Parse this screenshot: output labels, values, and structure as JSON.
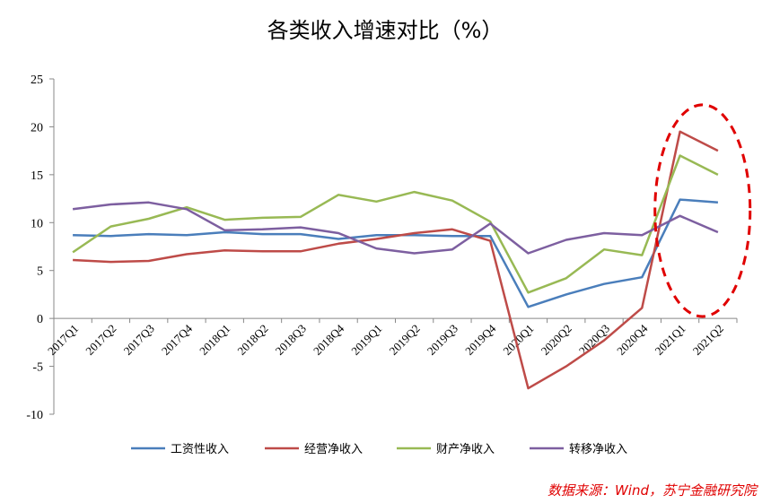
{
  "chart_data": {
    "type": "line",
    "title": "各类收入增速对比（%）",
    "categories": [
      "2017Q1",
      "2017Q2",
      "2017Q3",
      "2017Q4",
      "2018Q1",
      "2018Q2",
      "2018Q3",
      "2018Q4",
      "2019Q1",
      "2019Q2",
      "2019Q3",
      "2019Q4",
      "2020Q1",
      "2020Q2",
      "2020Q3",
      "2020Q4",
      "2021Q1",
      "2021Q2"
    ],
    "ylim": [
      -10,
      25
    ],
    "yticks": [
      "-10",
      "-5",
      "0",
      "5",
      "10",
      "15",
      "20",
      "25"
    ],
    "grid": false,
    "legend_position": "bottom",
    "series": [
      {
        "name": "工资性收入",
        "color": "#4a7ebb",
        "values": [
          8.7,
          8.6,
          8.8,
          8.7,
          9.0,
          8.8,
          8.8,
          8.3,
          8.7,
          8.7,
          8.6,
          8.6,
          1.2,
          2.5,
          3.6,
          4.3,
          12.4,
          12.1
        ]
      },
      {
        "name": "经营净收入",
        "color": "#be4b48",
        "values": [
          6.1,
          5.9,
          6.0,
          6.7,
          7.1,
          7.0,
          7.0,
          7.8,
          8.3,
          8.9,
          9.3,
          8.1,
          -7.3,
          -5.0,
          -2.3,
          1.1,
          19.5,
          17.5
        ]
      },
      {
        "name": "财产净收入",
        "color": "#98b954",
        "values": [
          6.9,
          9.6,
          10.4,
          11.6,
          10.3,
          10.5,
          10.6,
          12.9,
          12.2,
          13.2,
          12.3,
          10.1,
          2.7,
          4.2,
          7.2,
          6.6,
          17.0,
          15.0
        ]
      },
      {
        "name": "转移净收入",
        "color": "#7d5fa0",
        "values": [
          11.4,
          11.9,
          12.1,
          11.4,
          9.2,
          9.3,
          9.5,
          8.9,
          7.3,
          6.8,
          7.2,
          9.9,
          6.8,
          8.2,
          8.9,
          8.7,
          10.7,
          9.0
        ]
      }
    ],
    "annotation": {
      "shape": "ellipse",
      "style": "dashed",
      "color": "#e00000",
      "covers": [
        "2021Q1",
        "2021Q2"
      ]
    }
  },
  "source": "数据来源：Wind，苏宁金融研究院"
}
